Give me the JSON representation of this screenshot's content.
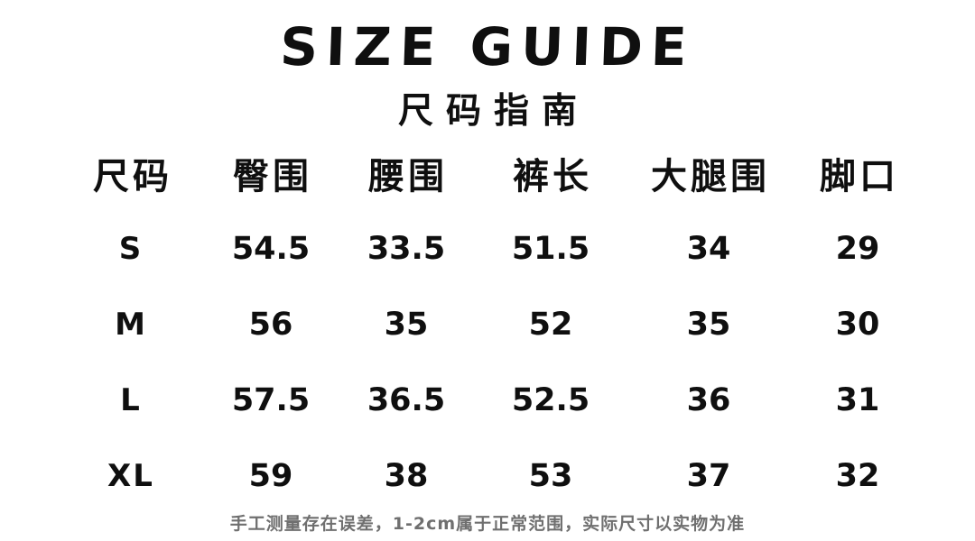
{
  "header": {
    "title": "SIZE GUIDE",
    "subtitle": "尺码指南"
  },
  "chart_data": {
    "type": "table",
    "title": "SIZE GUIDE 尺码指南",
    "columns": [
      "尺码",
      "臀围",
      "腰围",
      "裤长",
      "大腿围",
      "脚口"
    ],
    "rows": [
      [
        "S",
        "54.5",
        "33.5",
        "51.5",
        "34",
        "29"
      ],
      [
        "M",
        "56",
        "35",
        "52",
        "35",
        "30"
      ],
      [
        "L",
        "57.5",
        "36.5",
        "52.5",
        "36",
        "31"
      ],
      [
        "XL",
        "59",
        "38",
        "53",
        "37",
        "32"
      ]
    ],
    "layout": {
      "grid": false,
      "borders": "none",
      "alignment": "center"
    }
  },
  "footnote": "手工测量存在误差，1-2cm属于正常范围，实际尺寸以实物为准",
  "colors": {
    "text": "#0f0f0f",
    "footnote": "#6f6f6f",
    "background": "#ffffff"
  }
}
